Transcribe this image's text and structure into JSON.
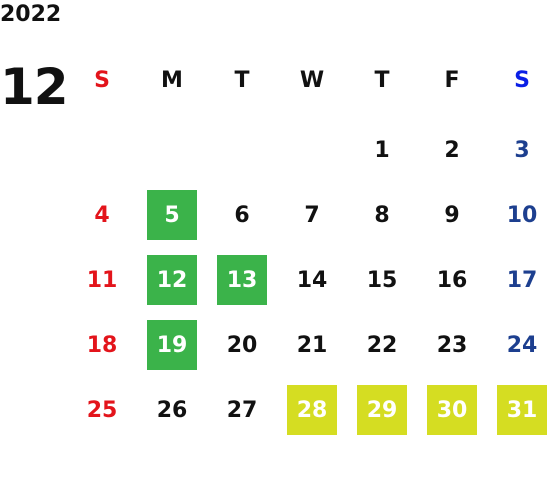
{
  "year": "2022",
  "month": "12",
  "weekdays": [
    "S",
    "M",
    "T",
    "W",
    "T",
    "F",
    "S"
  ],
  "header_colors": [
    "#e3141b",
    "#111111",
    "#111111",
    "#111111",
    "#111111",
    "#111111",
    "#0a1fe6"
  ],
  "day_colors": [
    "#e3141b",
    "#111111",
    "#111111",
    "#111111",
    "#111111",
    "#111111",
    "#1d3f8f"
  ],
  "weeks": [
    [
      null,
      null,
      null,
      null,
      1,
      2,
      3
    ],
    [
      4,
      5,
      6,
      7,
      8,
      9,
      10
    ],
    [
      11,
      12,
      13,
      14,
      15,
      16,
      17
    ],
    [
      18,
      19,
      20,
      21,
      22,
      23,
      24
    ],
    [
      25,
      26,
      27,
      28,
      29,
      30,
      31
    ]
  ],
  "highlights": [
    {
      "color": "#3bb34a",
      "days": [
        5,
        12,
        13,
        19
      ]
    },
    {
      "color": "#d5dd22",
      "days": [
        28,
        29,
        30,
        31
      ]
    }
  ]
}
